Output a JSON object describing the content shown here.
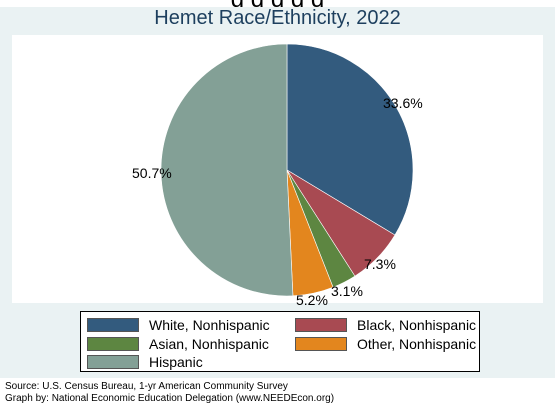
{
  "header_cut_text": "g   d                   d                   d   d",
  "chart_data": {
    "type": "pie",
    "title": "Hemet Race/Ethnicity, 2022",
    "series": [
      {
        "name": "White, Nonhispanic",
        "value": 33.6,
        "label": "33.6%",
        "color": "#335b7e"
      },
      {
        "name": "Black, Nonhispanic",
        "value": 7.3,
        "label": "7.3%",
        "color": "#a84a52"
      },
      {
        "name": "Asian, Nonhispanic",
        "value": 3.1,
        "label": "3.1%",
        "color": "#5d8641"
      },
      {
        "name": "Other, Nonhispanic",
        "value": 5.2,
        "label": "5.2%",
        "color": "#e3861e"
      },
      {
        "name": "Hispanic",
        "value": 50.7,
        "label": "50.7%",
        "color": "#83a096"
      }
    ],
    "start_angle": "12 o'clock",
    "direction": "clockwise",
    "legend_position": "bottom"
  },
  "notes": {
    "source": "Source:  U.S. Census Bureau, 1-yr American Community Survey",
    "graph_by": "Graph by: National Economic Education Delegation (www.NEEDEcon.org)"
  }
}
